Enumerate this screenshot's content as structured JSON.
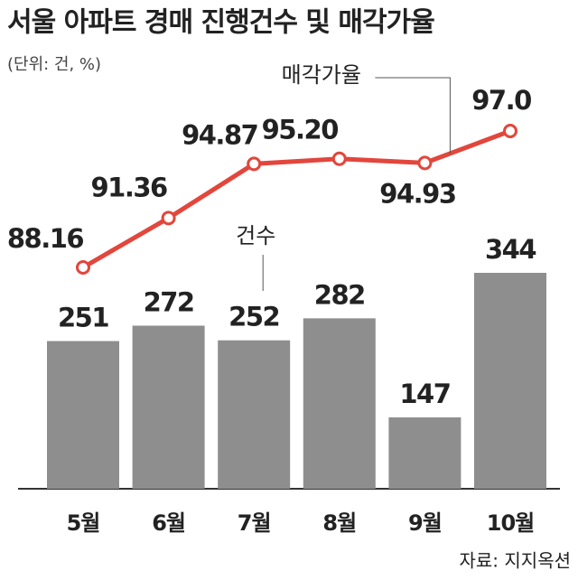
{
  "chart_data": {
    "type": "bar",
    "title": "서울 아파트 경매 진행건수 및 매각가율",
    "subtitle": "(단위: 건, %)",
    "source": "자료: 지지옥션",
    "categories": [
      "5월",
      "6월",
      "7월",
      "8월",
      "9월",
      "10월"
    ],
    "series": [
      {
        "name": "건수",
        "type": "bar",
        "color": "#8e8e8e",
        "values": [
          251,
          272,
          252,
          282,
          147,
          344
        ]
      },
      {
        "name": "매각가율",
        "type": "line",
        "color": "#e2463c",
        "values": [
          88.16,
          91.36,
          94.87,
          95.2,
          94.93,
          97.0
        ],
        "value_labels": [
          "88.16",
          "91.36",
          "94.87",
          "95.20",
          "94.93",
          "97.0"
        ]
      }
    ]
  }
}
